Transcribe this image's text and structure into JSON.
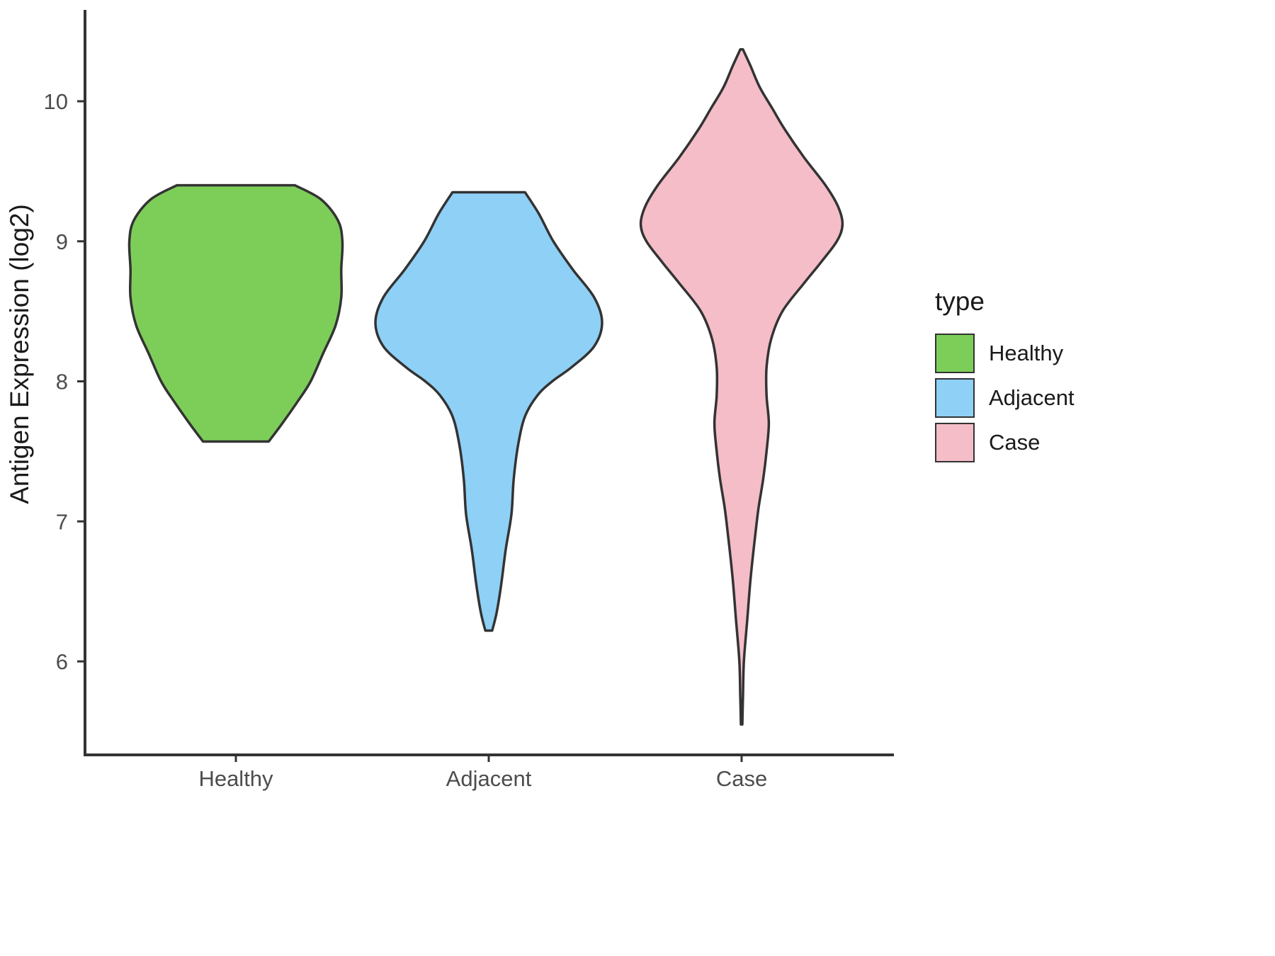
{
  "figure": {
    "y_axis_title": "Antigen Expression (log2)",
    "legend": {
      "title": "type",
      "items": [
        {
          "label": "Healthy",
          "color": "#7DCE59"
        },
        {
          "label": "Adjacent",
          "color": "#8FD0F6"
        },
        {
          "label": "Case",
          "color": "#F4BDC8"
        }
      ]
    },
    "colors": {
      "outline": "#333333",
      "axis": "#333333",
      "tick_label": "#4d4d4d",
      "background": "#ffffff"
    }
  },
  "chart_data": {
    "type": "violin",
    "title": "",
    "xlabel": "",
    "ylabel": "Antigen Expression (log2)",
    "categories": [
      "Healthy",
      "Adjacent",
      "Case"
    ],
    "y_ticks": [
      6,
      7,
      8,
      9,
      10
    ],
    "ylim": [
      5.3,
      10.7
    ],
    "grid": false,
    "legend_position": "right",
    "series": [
      {
        "name": "Healthy",
        "fill": "#7DCE59",
        "y_range": [
          7.57,
          9.4
        ],
        "trimmed_ends": "flat_top_and_bottom",
        "profile": [
          {
            "y": 9.4,
            "w": 0.52
          },
          {
            "y": 9.3,
            "w": 0.75
          },
          {
            "y": 9.15,
            "w": 0.9
          },
          {
            "y": 9.0,
            "w": 0.94
          },
          {
            "y": 8.8,
            "w": 0.93
          },
          {
            "y": 8.6,
            "w": 0.93
          },
          {
            "y": 8.4,
            "w": 0.88
          },
          {
            "y": 8.2,
            "w": 0.77
          },
          {
            "y": 8.0,
            "w": 0.66
          },
          {
            "y": 7.85,
            "w": 0.54
          },
          {
            "y": 7.7,
            "w": 0.41
          },
          {
            "y": 7.57,
            "w": 0.29
          }
        ]
      },
      {
        "name": "Adjacent",
        "fill": "#8FD0F6",
        "y_range": [
          6.22,
          9.35
        ],
        "trimmed_ends": "flat_top_narrow_bottom",
        "profile": [
          {
            "y": 9.35,
            "w": 0.32
          },
          {
            "y": 9.2,
            "w": 0.44
          },
          {
            "y": 9.0,
            "w": 0.57
          },
          {
            "y": 8.8,
            "w": 0.74
          },
          {
            "y": 8.6,
            "w": 0.93
          },
          {
            "y": 8.42,
            "w": 1.0
          },
          {
            "y": 8.25,
            "w": 0.93
          },
          {
            "y": 8.1,
            "w": 0.73
          },
          {
            "y": 8.0,
            "w": 0.56
          },
          {
            "y": 7.9,
            "w": 0.43
          },
          {
            "y": 7.75,
            "w": 0.32
          },
          {
            "y": 7.55,
            "w": 0.26
          },
          {
            "y": 7.3,
            "w": 0.22
          },
          {
            "y": 7.05,
            "w": 0.2
          },
          {
            "y": 6.8,
            "w": 0.15
          },
          {
            "y": 6.55,
            "w": 0.11
          },
          {
            "y": 6.35,
            "w": 0.07
          },
          {
            "y": 6.22,
            "w": 0.03
          }
        ]
      },
      {
        "name": "Case",
        "fill": "#F4BDC8",
        "y_range": [
          5.55,
          10.37
        ],
        "trimmed_ends": "pointed_both",
        "profile": [
          {
            "y": 10.37,
            "w": 0.012
          },
          {
            "y": 10.25,
            "w": 0.08
          },
          {
            "y": 10.1,
            "w": 0.16
          },
          {
            "y": 9.95,
            "w": 0.27
          },
          {
            "y": 9.8,
            "w": 0.38
          },
          {
            "y": 9.6,
            "w": 0.55
          },
          {
            "y": 9.4,
            "w": 0.74
          },
          {
            "y": 9.25,
            "w": 0.85
          },
          {
            "y": 9.12,
            "w": 0.89
          },
          {
            "y": 9.0,
            "w": 0.84
          },
          {
            "y": 8.85,
            "w": 0.7
          },
          {
            "y": 8.7,
            "w": 0.55
          },
          {
            "y": 8.5,
            "w": 0.36
          },
          {
            "y": 8.3,
            "w": 0.26
          },
          {
            "y": 8.1,
            "w": 0.22
          },
          {
            "y": 7.9,
            "w": 0.22
          },
          {
            "y": 7.7,
            "w": 0.24
          },
          {
            "y": 7.5,
            "w": 0.22
          },
          {
            "y": 7.3,
            "w": 0.19
          },
          {
            "y": 7.1,
            "w": 0.15
          },
          {
            "y": 6.9,
            "w": 0.12
          },
          {
            "y": 6.6,
            "w": 0.08
          },
          {
            "y": 6.3,
            "w": 0.05
          },
          {
            "y": 6.0,
            "w": 0.02
          },
          {
            "y": 5.75,
            "w": 0.012
          },
          {
            "y": 5.55,
            "w": 0.006
          }
        ]
      }
    ]
  }
}
